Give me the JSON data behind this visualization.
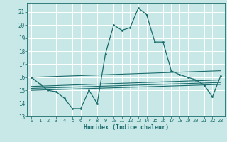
{
  "xlabel": "Humidex (Indice chaleur)",
  "bg_color": "#c8e8e8",
  "line_color": "#1a6b6b",
  "grid_color": "#ffffff",
  "xlim": [
    -0.5,
    23.5
  ],
  "ylim": [
    13,
    21.7
  ],
  "yticks": [
    13,
    14,
    15,
    16,
    17,
    18,
    19,
    20,
    21
  ],
  "xticks": [
    0,
    1,
    2,
    3,
    4,
    5,
    6,
    7,
    8,
    9,
    10,
    11,
    12,
    13,
    14,
    15,
    16,
    17,
    18,
    19,
    20,
    21,
    22,
    23
  ],
  "series": [
    [
      0,
      16.0
    ],
    [
      1,
      15.5
    ],
    [
      2,
      15.0
    ],
    [
      3,
      14.9
    ],
    [
      4,
      14.4
    ],
    [
      5,
      13.6
    ],
    [
      6,
      13.6
    ],
    [
      7,
      15.0
    ],
    [
      8,
      14.0
    ],
    [
      9,
      17.8
    ],
    [
      10,
      20.0
    ],
    [
      11,
      19.6
    ],
    [
      12,
      19.8
    ],
    [
      13,
      21.3
    ],
    [
      14,
      20.8
    ],
    [
      15,
      18.7
    ],
    [
      16,
      18.7
    ],
    [
      17,
      16.5
    ],
    [
      18,
      16.2
    ],
    [
      19,
      16.0
    ],
    [
      20,
      15.8
    ],
    [
      21,
      15.4
    ],
    [
      22,
      14.5
    ],
    [
      23,
      16.1
    ]
  ],
  "ref_lines": [
    [
      [
        0,
        16.0
      ],
      [
        23,
        16.5
      ]
    ],
    [
      [
        0,
        15.3
      ],
      [
        23,
        15.8
      ]
    ],
    [
      [
        0,
        15.15
      ],
      [
        23,
        15.6
      ]
    ],
    [
      [
        0,
        15.0
      ],
      [
        23,
        15.45
      ]
    ]
  ]
}
